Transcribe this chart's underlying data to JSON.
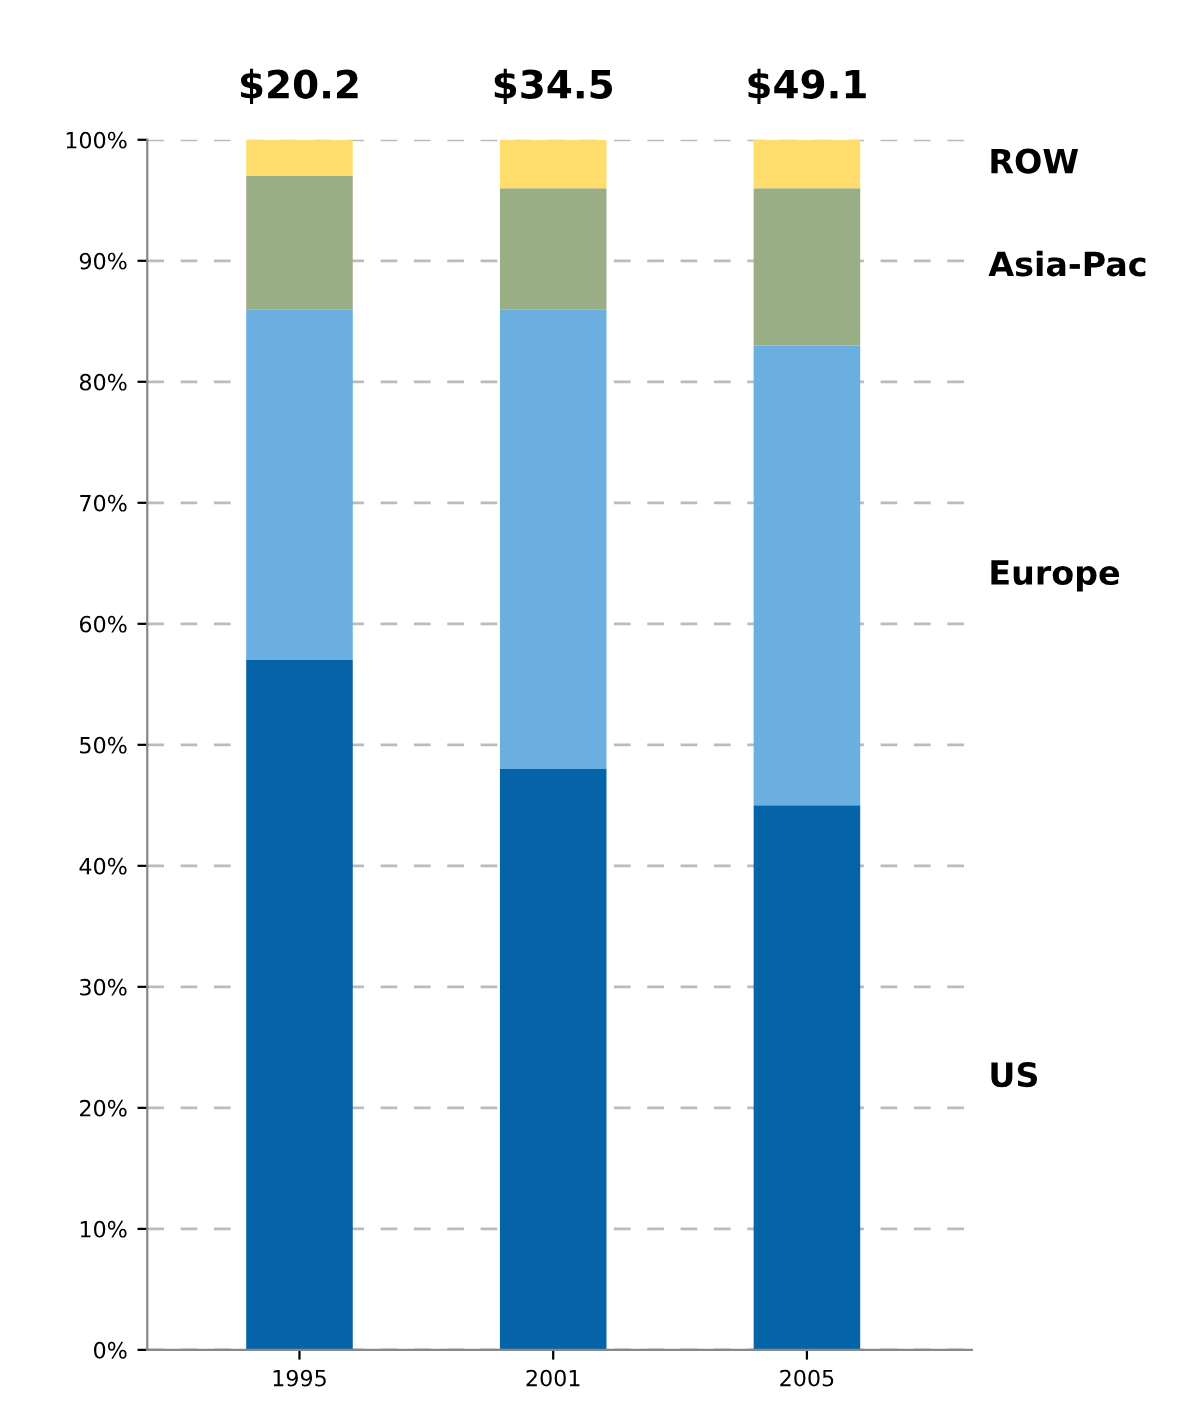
{
  "chart_data": {
    "type": "bar",
    "stacked": true,
    "categories": [
      "1995",
      "2001",
      "2005"
    ],
    "series": [
      {
        "name": "US",
        "color": "#0563a8",
        "values": [
          57,
          48,
          45
        ]
      },
      {
        "name": "Europe",
        "color": "#6aafe0",
        "values": [
          29,
          38,
          38
        ]
      },
      {
        "name": "Asia-Pac",
        "color": "#9aae86",
        "values": [
          11,
          10,
          13
        ]
      },
      {
        "name": "ROW",
        "color": "#fedd6c",
        "values": [
          3,
          4,
          4
        ]
      }
    ],
    "annotations": [
      {
        "text": "$20.2",
        "x": "1995",
        "y": 100
      },
      {
        "text": "$34.5",
        "x": "2001",
        "y": 100
      },
      {
        "text": "$49.1",
        "x": "2005",
        "y": 100
      }
    ],
    "ylim": [
      0,
      100
    ],
    "yticks": [
      {
        "value": 0,
        "label": "0%"
      },
      {
        "value": 10,
        "label": "10%"
      },
      {
        "value": 20,
        "label": "20%"
      },
      {
        "value": 30,
        "label": "30%"
      },
      {
        "value": 40,
        "label": "40%"
      },
      {
        "value": 50,
        "label": "50%"
      },
      {
        "value": 60,
        "label": "60%"
      },
      {
        "value": 70,
        "label": "70%"
      },
      {
        "value": 80,
        "label": "80%"
      },
      {
        "value": 90,
        "label": "90%"
      },
      {
        "value": 100,
        "label": "100%"
      }
    ],
    "grid": "y",
    "line_style": "dashed",
    "legend": false
  }
}
